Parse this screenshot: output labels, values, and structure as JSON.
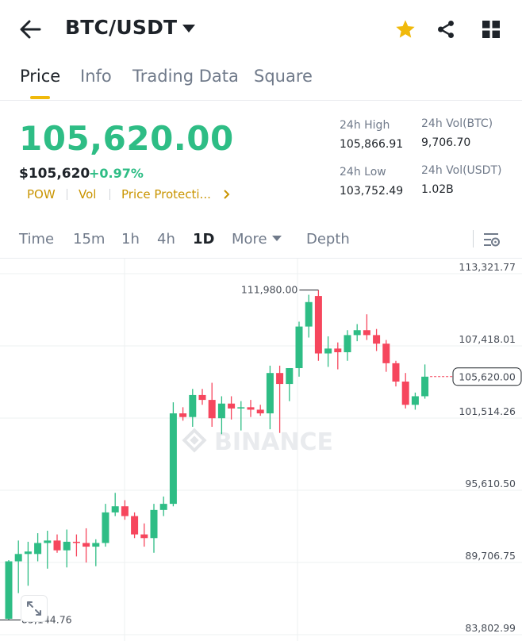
{
  "header": {
    "title": "BTC/USDT",
    "icons": [
      "back-arrow-icon",
      "caret-down-icon",
      "star-icon",
      "share-icon",
      "grid-icon"
    ],
    "star_color": "#f0b90b"
  },
  "tabs": [
    {
      "label": "Price",
      "active": true
    },
    {
      "label": "Info",
      "active": false
    },
    {
      "label": "Trading Data",
      "active": false
    },
    {
      "label": "Square",
      "active": false
    }
  ],
  "price": {
    "last": "105,620.00",
    "usd": "$105,620",
    "change": "+0.97%",
    "color_up": "#2ebd85",
    "color_down": "#f6465d"
  },
  "tags": [
    "POW",
    "Vol",
    "Price Protecti..."
  ],
  "stats": {
    "high_label": "24h High",
    "high_value": "105,866.91",
    "low_label": "24h Low",
    "low_value": "103,752.49",
    "vol_btc_label": "24h Vol(BTC)",
    "vol_btc_value": "9,706.70",
    "vol_usdt_label": "24h Vol(USDT)",
    "vol_usdt_value": "1.02B"
  },
  "timeframes": [
    {
      "label": "Time",
      "active": false
    },
    {
      "label": "15m",
      "active": false
    },
    {
      "label": "1h",
      "active": false
    },
    {
      "label": "4h",
      "active": false
    },
    {
      "label": "1D",
      "active": true
    },
    {
      "label": "More",
      "active": false
    },
    {
      "label": "Depth",
      "active": false
    }
  ],
  "chart_data": {
    "type": "candlestick",
    "y_ticks": [
      "113,321.77",
      "107,418.01",
      "101,514.26",
      "95,610.50",
      "89,706.75",
      "83,802.99"
    ],
    "ylim": [
      83802.99,
      113321.77
    ],
    "max_label": "111,980.00",
    "min_label": "85,144.76",
    "last_label": "105,620.00",
    "watermark": "BINANCE",
    "candles": [
      {
        "o": 85100,
        "h": 89900,
        "l": 85000,
        "c": 89800
      },
      {
        "o": 89800,
        "h": 91500,
        "l": 87200,
        "c": 90400
      },
      {
        "o": 90400,
        "h": 91400,
        "l": 87800,
        "c": 90600
      },
      {
        "o": 90400,
        "h": 92100,
        "l": 89800,
        "c": 91300
      },
      {
        "o": 91300,
        "h": 92300,
        "l": 89200,
        "c": 91500
      },
      {
        "o": 91500,
        "h": 92000,
        "l": 90500,
        "c": 90700
      },
      {
        "o": 90700,
        "h": 92400,
        "l": 89300,
        "c": 91400
      },
      {
        "o": 91400,
        "h": 92000,
        "l": 90200,
        "c": 91300
      },
      {
        "o": 91300,
        "h": 92500,
        "l": 89700,
        "c": 91000
      },
      {
        "o": 91000,
        "h": 91600,
        "l": 89400,
        "c": 91300
      },
      {
        "o": 91300,
        "h": 94500,
        "l": 91000,
        "c": 93800
      },
      {
        "o": 93800,
        "h": 95400,
        "l": 93500,
        "c": 94300
      },
      {
        "o": 94300,
        "h": 94800,
        "l": 93200,
        "c": 93500
      },
      {
        "o": 93500,
        "h": 93800,
        "l": 91700,
        "c": 92000
      },
      {
        "o": 92000,
        "h": 92900,
        "l": 91000,
        "c": 91700
      },
      {
        "o": 91700,
        "h": 94500,
        "l": 90500,
        "c": 94000
      },
      {
        "o": 94000,
        "h": 95100,
        "l": 93500,
        "c": 94500
      },
      {
        "o": 94500,
        "h": 102800,
        "l": 94300,
        "c": 101900
      },
      {
        "o": 101900,
        "h": 102400,
        "l": 101300,
        "c": 101600
      },
      {
        "o": 101600,
        "h": 103900,
        "l": 100800,
        "c": 103400
      },
      {
        "o": 103400,
        "h": 103900,
        "l": 102600,
        "c": 103000
      },
      {
        "o": 103000,
        "h": 104400,
        "l": 100800,
        "c": 101500
      },
      {
        "o": 101500,
        "h": 103300,
        "l": 100200,
        "c": 102700
      },
      {
        "o": 102700,
        "h": 103300,
        "l": 101400,
        "c": 102300
      },
      {
        "o": 102300,
        "h": 102900,
        "l": 100500,
        "c": 102400
      },
      {
        "o": 102400,
        "h": 103000,
        "l": 101600,
        "c": 102200
      },
      {
        "o": 102200,
        "h": 102600,
        "l": 101700,
        "c": 101900
      },
      {
        "o": 101900,
        "h": 105800,
        "l": 100600,
        "c": 105200
      },
      {
        "o": 105200,
        "h": 105800,
        "l": 100300,
        "c": 104300
      },
      {
        "o": 104300,
        "h": 105600,
        "l": 102900,
        "c": 105600
      },
      {
        "o": 105600,
        "h": 109400,
        "l": 104900,
        "c": 109000
      },
      {
        "o": 109000,
        "h": 111600,
        "l": 108100,
        "c": 111000
      },
      {
        "o": 111500,
        "h": 111980,
        "l": 106200,
        "c": 106800
      },
      {
        "o": 106800,
        "h": 108200,
        "l": 105700,
        "c": 107200
      },
      {
        "o": 107200,
        "h": 107700,
        "l": 105500,
        "c": 106900
      },
      {
        "o": 106900,
        "h": 108700,
        "l": 106200,
        "c": 108300
      },
      {
        "o": 108300,
        "h": 109200,
        "l": 107800,
        "c": 108700
      },
      {
        "o": 108700,
        "h": 110000,
        "l": 107900,
        "c": 108300
      },
      {
        "o": 108300,
        "h": 108800,
        "l": 107000,
        "c": 107600
      },
      {
        "o": 107600,
        "h": 107900,
        "l": 105300,
        "c": 106000
      },
      {
        "o": 106000,
        "h": 106200,
        "l": 104100,
        "c": 104500
      },
      {
        "o": 104500,
        "h": 105200,
        "l": 102300,
        "c": 102600
      },
      {
        "o": 102600,
        "h": 103600,
        "l": 102200,
        "c": 103300
      },
      {
        "o": 103300,
        "h": 105900,
        "l": 103100,
        "c": 104900
      }
    ]
  }
}
